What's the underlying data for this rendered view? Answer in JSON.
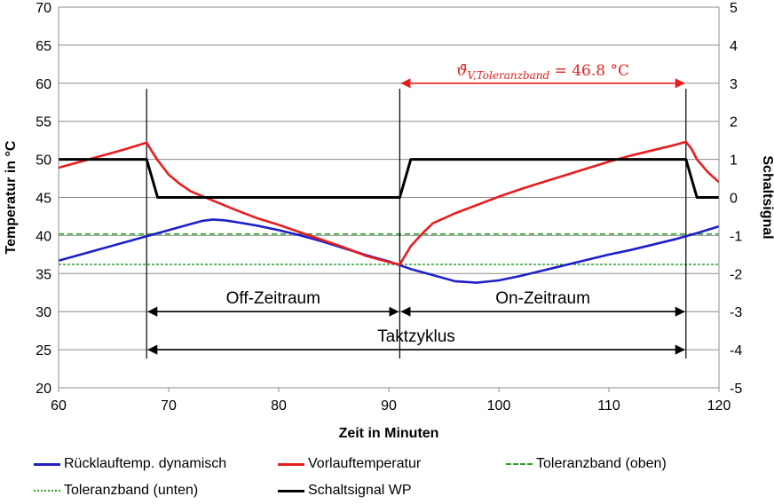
{
  "chart_data": {
    "type": "line",
    "title": "",
    "xlabel": "Zeit in Minuten",
    "ylabel": "Temperatur in °C",
    "y2label": "Schaltsignal",
    "xlim": [
      60,
      120
    ],
    "ylim": [
      20,
      70
    ],
    "y2lim": [
      -5,
      5
    ],
    "xticks": [
      "60",
      "70",
      "80",
      "90",
      "100",
      "110",
      "120"
    ],
    "yticks": [
      "20",
      "25",
      "30",
      "35",
      "40",
      "45",
      "50",
      "55",
      "60",
      "65",
      "70"
    ],
    "y2ticks": [
      "-5",
      "-4",
      "-3",
      "-2",
      "-1",
      "0",
      "1",
      "2",
      "3",
      "4",
      "5"
    ],
    "grid": true,
    "legend_position": "bottom",
    "series": [
      {
        "name": "Rücklauftemp. dynamisch",
        "axis": "left",
        "color": "#1f1fc8",
        "style": "solid",
        "x": [
          60,
          62,
          64,
          66,
          68,
          70,
          72,
          73,
          74,
          75,
          76,
          78,
          80,
          82,
          84,
          86,
          88,
          90,
          91,
          92,
          94,
          96,
          98,
          100,
          102,
          104,
          106,
          108,
          110,
          112,
          114,
          116,
          117,
          118,
          120
        ],
        "y": [
          36.7,
          37.5,
          38.3,
          39.1,
          39.9,
          40.7,
          41.5,
          41.9,
          42.1,
          42.0,
          41.8,
          41.3,
          40.7,
          40.0,
          39.2,
          38.3,
          37.4,
          36.6,
          36.1,
          35.6,
          34.8,
          34.0,
          33.8,
          34.1,
          34.7,
          35.4,
          36.1,
          36.8,
          37.5,
          38.1,
          38.8,
          39.5,
          39.9,
          40.3,
          41.2
        ]
      },
      {
        "name": "Vorlauftemperatur",
        "axis": "left",
        "color": "#e61e1e",
        "style": "solid",
        "x": [
          60,
          62,
          64,
          66,
          68,
          68.5,
          69,
          70,
          71,
          72,
          74,
          76,
          78,
          80,
          82,
          84,
          86,
          88,
          90,
          91,
          92,
          93,
          94,
          96,
          98,
          100,
          102,
          104,
          106,
          108,
          110,
          112,
          114,
          116,
          117,
          117.5,
          118,
          119,
          120
        ],
        "y": [
          48.9,
          49.7,
          50.5,
          51.3,
          52.2,
          51.0,
          49.9,
          48.0,
          46.8,
          45.8,
          44.6,
          43.4,
          42.3,
          41.4,
          40.4,
          39.4,
          38.4,
          37.3,
          36.5,
          36.2,
          38.6,
          40.2,
          41.6,
          42.9,
          44.0,
          45.1,
          46.1,
          47.0,
          47.9,
          48.8,
          49.7,
          50.5,
          51.2,
          51.9,
          52.3,
          51.4,
          50.0,
          48.3,
          47.0
        ]
      },
      {
        "name": "Toleranzband (oben)",
        "axis": "left",
        "color": "#2ca02c",
        "style": "dashed",
        "x": [
          60,
          120
        ],
        "y": [
          40.2,
          40.2
        ]
      },
      {
        "name": "Toleranzband (unten)",
        "axis": "left",
        "color": "#2ca02c",
        "style": "dotted",
        "x": [
          60,
          120
        ],
        "y": [
          36.2,
          36.2
        ]
      },
      {
        "name": "Schaltsignal WP",
        "axis": "right",
        "color": "#000000",
        "style": "solid",
        "x": [
          60,
          68,
          69,
          91,
          92,
          117,
          118,
          120
        ],
        "y": [
          1,
          1,
          0,
          0,
          1,
          1,
          0,
          0
        ]
      }
    ],
    "vlines_x": [
      68,
      91,
      117
    ],
    "annotations": [
      {
        "text": "Off-Zeitraum",
        "x_start": 68,
        "x_end": 91,
        "y": 30
      },
      {
        "text": "On-Zeitraum",
        "x_start": 91,
        "x_end": 117,
        "y": 30
      },
      {
        "text": "Taktzyklus",
        "x_start": 68,
        "x_end": 117,
        "y": 25
      },
      {
        "text": "ϑ̄V,Toleranzband = 46.8 °C",
        "symbol": "ϑ̄",
        "subscript": "V,Toleranzband",
        "value": "= 46.8 °C",
        "x_start": 91,
        "x_end": 117,
        "y": 60
      }
    ]
  }
}
